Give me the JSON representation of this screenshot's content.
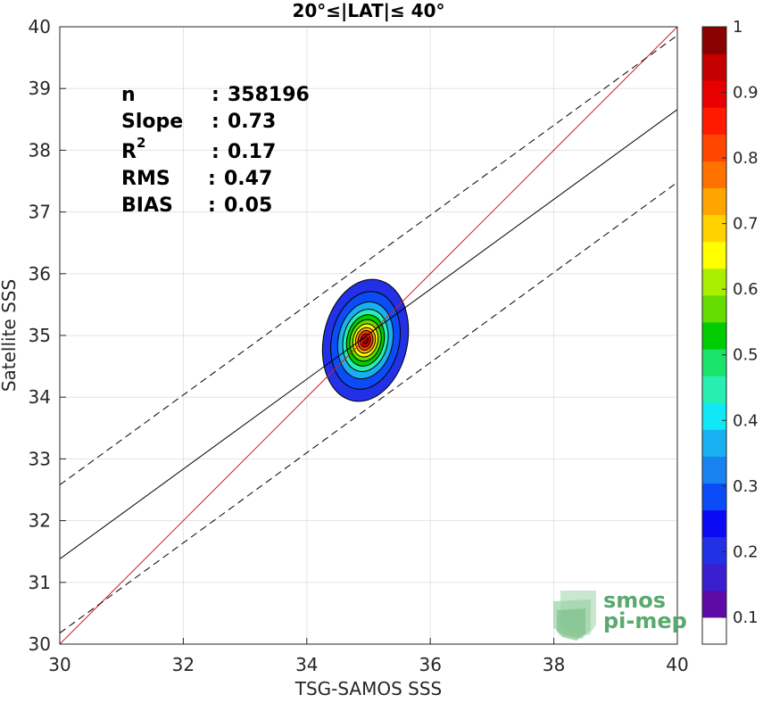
{
  "chart_data": {
    "type": "scatter",
    "title": "20°≤|LAT|≤ 40°",
    "xlabel": "TSG-SAMOS SSS",
    "ylabel": "Satellite SSS",
    "xlim": [
      30,
      40
    ],
    "ylim": [
      30,
      40
    ],
    "xticks": [
      "30",
      "32",
      "34",
      "36",
      "38",
      "40"
    ],
    "yticks": [
      "30",
      "31",
      "32",
      "33",
      "34",
      "35",
      "36",
      "37",
      "38",
      "39",
      "40"
    ],
    "grid": true,
    "stats": [
      {
        "label": "n",
        "sep": ": ",
        "value": "358196"
      },
      {
        "label": "Slope",
        "sep": ": ",
        "value": "0.73"
      },
      {
        "label": "R",
        "sup": "2",
        "sep": ": ",
        "value": "0.17"
      },
      {
        "label": "RMS",
        "sep": ": ",
        "value": "0.47"
      },
      {
        "label": "BIAS",
        "sep": ": ",
        "value": "0.05"
      }
    ],
    "lines": [
      {
        "kind": "identity",
        "color": "#e31a1c",
        "x": [
          30,
          40
        ],
        "y": [
          30,
          40
        ]
      },
      {
        "kind": "fit",
        "color": "#000000",
        "x": [
          30,
          40
        ],
        "y": [
          31.38,
          38.66
        ]
      },
      {
        "kind": "upper-bound",
        "color": "#000000",
        "dashed": true,
        "x": [
          30,
          40
        ],
        "y": [
          32.58,
          39.86
        ]
      },
      {
        "kind": "lower-bound",
        "color": "#000000",
        "dashed": true,
        "x": [
          30,
          40
        ],
        "y": [
          30.18,
          37.48
        ]
      }
    ],
    "density_peak": {
      "x": 34.95,
      "y": 34.92
    },
    "density_contours": [
      {
        "level": 0.05,
        "rx": 0.68,
        "ry": 1.0
      },
      {
        "level": 0.1,
        "rx": 0.55,
        "ry": 0.8
      },
      {
        "level": 0.2,
        "rx": 0.44,
        "ry": 0.63
      },
      {
        "level": 0.3,
        "rx": 0.36,
        "ry": 0.51
      },
      {
        "level": 0.4,
        "rx": 0.3,
        "ry": 0.42
      },
      {
        "level": 0.5,
        "rx": 0.25,
        "ry": 0.34
      },
      {
        "level": 0.6,
        "rx": 0.2,
        "ry": 0.27
      },
      {
        "level": 0.7,
        "rx": 0.16,
        "ry": 0.21
      },
      {
        "level": 0.8,
        "rx": 0.12,
        "ry": 0.16
      },
      {
        "level": 0.9,
        "rx": 0.08,
        "ry": 0.11
      },
      {
        "level": 1.0,
        "rx": 0.04,
        "ry": 0.06
      }
    ],
    "colorbar": {
      "ticks": [
        "0.1",
        "0.2",
        "0.3",
        "0.4",
        "0.5",
        "0.6",
        "0.7",
        "0.8",
        "0.9",
        "1"
      ],
      "colors": [
        "#ffffff",
        "#5d0aa6",
        "#3a1fd0",
        "#2230e6",
        "#0a0af5",
        "#0b4cf7",
        "#1a82f0",
        "#18b0f0",
        "#10e8f5",
        "#26efb0",
        "#19e36b",
        "#00cc00",
        "#66dd00",
        "#aaee00",
        "#ffff00",
        "#ffd200",
        "#ffa500",
        "#ff7200",
        "#ff4500",
        "#ff1a00",
        "#e80000",
        "#c40000",
        "#8b0000"
      ]
    }
  },
  "logo": {
    "line1": "smos",
    "line2": "pi-mep"
  }
}
